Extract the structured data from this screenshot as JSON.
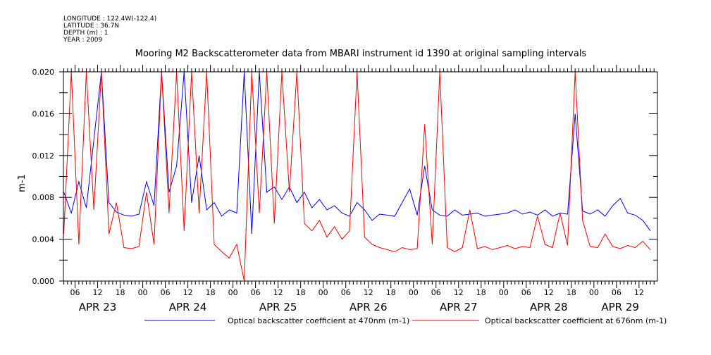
{
  "meta": {
    "longitude": "LONGITUDE : 122.4W(-122.4)",
    "latitude": "LATITUDE : 36.7N",
    "depth": "DEPTH (m) : 1",
    "year": "YEAR : 2009"
  },
  "chart_data": {
    "type": "line",
    "title": "Mooring M2 Backscatterometer data from MBARI instrument id 1390 at original sampling intervals",
    "xlabel": "",
    "ylabel": "m-1",
    "x_units": "hours since APR 23 00:00",
    "xlim": [
      2.9,
      160.9
    ],
    "ylim": [
      0,
      0.02
    ],
    "yticks": [
      "0.000",
      "0.004",
      "0.008",
      "0.012",
      "0.016",
      "0.020"
    ],
    "hour_tick_labels": [
      "06",
      "12",
      "18",
      "00"
    ],
    "day_labels": [
      {
        "label": "APR 23",
        "hour": 12
      },
      {
        "label": "APR 24",
        "hour": 36
      },
      {
        "label": "APR 25",
        "hour": 60
      },
      {
        "label": "APR 26",
        "hour": 84
      },
      {
        "label": "APR 27",
        "hour": 108
      },
      {
        "label": "APR 28",
        "hour": 132
      },
      {
        "label": "APR 29",
        "hour": 151
      }
    ],
    "legend_placement": "bottom",
    "x_start": 3,
    "x_step": 2,
    "series": [
      {
        "name": "Optical backscatter coefficient at 470nm (m-1)",
        "color": "#0000ff",
        "values": [
          0.0085,
          0.0065,
          0.0095,
          0.007,
          0.0135,
          0.02,
          0.0075,
          0.0066,
          0.0063,
          0.0062,
          0.0064,
          0.0095,
          0.0072,
          0.02,
          0.0085,
          0.011,
          0.02,
          0.0075,
          0.012,
          0.0068,
          0.0075,
          0.0062,
          0.0068,
          0.0065,
          0.02,
          0.0045,
          0.02,
          0.0085,
          0.009,
          0.0078,
          0.009,
          0.0075,
          0.0085,
          0.007,
          0.0078,
          0.0068,
          0.0072,
          0.0065,
          0.0062,
          0.0075,
          0.0068,
          0.0058,
          0.0064,
          0.0063,
          0.0062,
          0.0075,
          0.0088,
          0.0063,
          0.011,
          0.0068,
          0.0063,
          0.0062,
          0.0068,
          0.0063,
          0.0064,
          0.0065,
          0.0062,
          0.0063,
          0.0064,
          0.0065,
          0.0068,
          0.0064,
          0.0066,
          0.0063,
          0.0068,
          0.0062,
          0.0065,
          0.0064,
          0.016,
          0.0067,
          0.0064,
          0.0068,
          0.0062,
          0.0072,
          0.0079,
          0.0065,
          0.0063,
          0.0058,
          0.0048
        ]
      },
      {
        "name": "Optical backscatter coefficient at 676nm (m-1)",
        "color": "#ff0000",
        "values": [
          0.0045,
          0.02,
          0.0035,
          0.02,
          0.0068,
          0.02,
          0.0045,
          0.0075,
          0.0032,
          0.0031,
          0.0033,
          0.0085,
          0.0035,
          0.02,
          0.0065,
          0.02,
          0.0048,
          0.02,
          0.0065,
          0.02,
          0.0035,
          0.0028,
          0.0022,
          0.0035,
          0.0,
          0.02,
          0.0065,
          0.02,
          0.0055,
          0.02,
          0.0085,
          0.02,
          0.0055,
          0.0048,
          0.0058,
          0.0042,
          0.0052,
          0.004,
          0.0048,
          0.02,
          0.0042,
          0.0035,
          0.0032,
          0.003,
          0.0028,
          0.0032,
          0.003,
          0.0031,
          0.015,
          0.0035,
          0.02,
          0.0032,
          0.0028,
          0.0032,
          0.0068,
          0.0031,
          0.0033,
          0.003,
          0.0032,
          0.0034,
          0.0031,
          0.0033,
          0.0032,
          0.0062,
          0.0035,
          0.0032,
          0.0065,
          0.0034,
          0.02,
          0.0058,
          0.0033,
          0.0032,
          0.0045,
          0.0033,
          0.0031,
          0.0034,
          0.0032,
          0.0038,
          0.003
        ]
      }
    ]
  }
}
